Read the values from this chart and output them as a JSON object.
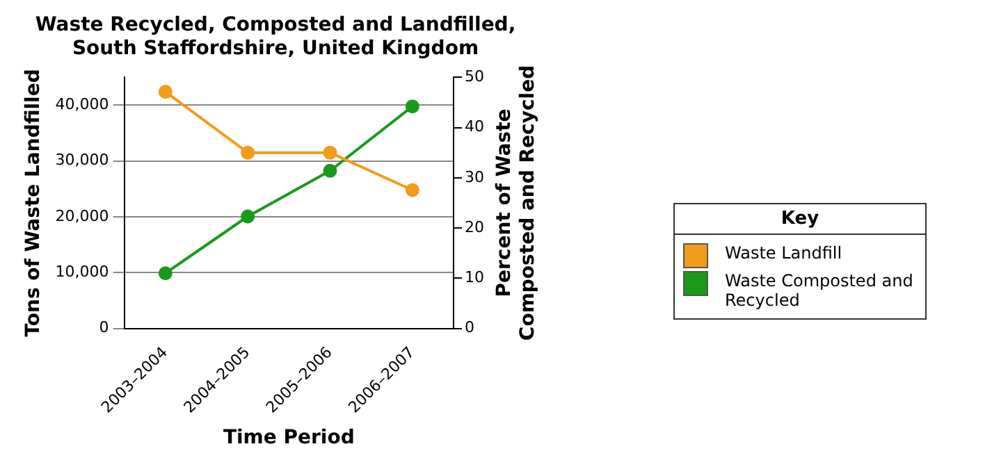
{
  "chart_data": {
    "type": "line",
    "title": [
      "Waste Recycled, Composted and Landfilled,",
      "South Staffordshire, United Kingdom"
    ],
    "xlabel": "Time Period",
    "ylabel": "Tons of Waste Landfilled",
    "y2label": [
      "Percent of Waste",
      "Composted and Recycled"
    ],
    "categories": [
      "2003–2004",
      "2004–2005",
      "2005–2006",
      "2006–2007"
    ],
    "series": [
      {
        "name": "Waste Landfill",
        "color": "#f39c1a",
        "values": [
          42400,
          31500,
          31500,
          24800
        ]
      },
      {
        "name": "Waste Composted and Recycled",
        "color": "#1a9a1a",
        "values": [
          11.0,
          22.3,
          31.4,
          44.2
        ],
        "axis": "y2"
      }
    ],
    "ylim": [
      0,
      45000
    ],
    "yticks": [
      {
        "value": 0,
        "label": "0"
      },
      {
        "value": 10000,
        "label": "10,000"
      },
      {
        "value": 20000,
        "label": "20,000"
      },
      {
        "value": 30000,
        "label": "30,000"
      },
      {
        "value": 40000,
        "label": "40,000"
      }
    ],
    "y2lim": [
      0,
      50
    ],
    "y2ticks": [
      0,
      10,
      20,
      30,
      40,
      50
    ],
    "grid": "y",
    "legend": "right",
    "legend_title": "Key",
    "marker": "circle",
    "line_style": "solid"
  }
}
